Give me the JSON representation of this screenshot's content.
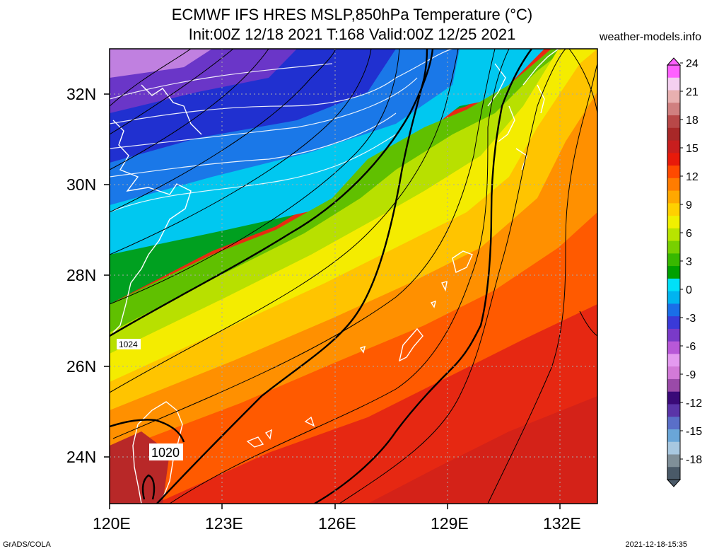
{
  "header": {
    "title_line1": "ECMWF IFS HRES MSLP,850hPa Temperature (°C)",
    "title_line2": "Init:00Z 12/18 2021 T:168 Valid:00Z 12/25 2021",
    "site": "weather-models.info"
  },
  "axes": {
    "lon_labels": [
      "120E",
      "123E",
      "126E",
      "129E",
      "132E"
    ],
    "lat_labels": [
      "32N",
      "30N",
      "28N",
      "26N",
      "24N"
    ]
  },
  "colorbar": {
    "labels": [
      "24",
      "21",
      "18",
      "15",
      "12",
      "9",
      "6",
      "3",
      "0",
      "-3",
      "-6",
      "-9",
      "-12",
      "-15",
      "-18"
    ],
    "colors": [
      "#4a5a68",
      "#7f8f98",
      "#a8c8e0",
      "#6aa6d8",
      "#5a6fc8",
      "#5a34a8",
      "#3a0a78",
      "#9a4aa8",
      "#d27ad8",
      "#e49af0",
      "#b858d8",
      "#7a3ac8",
      "#3a3ad8",
      "#1a6ee8",
      "#00b4f0",
      "#00e0f8",
      "#00a000",
      "#38b800",
      "#78d000",
      "#b8e400",
      "#f0f000",
      "#ffd000",
      "#ffa800",
      "#ff7c00",
      "#ff4a00",
      "#e81a0a",
      "#c81e1e",
      "#a82828",
      "#b84848",
      "#d08080",
      "#e8b0b0",
      "#f4d0f0",
      "#ff60ff"
    ]
  },
  "isobars": {
    "label_1024": "1024",
    "label_1020": "1020"
  },
  "footer": {
    "left": "GrADS/COLA",
    "right": "2021-12-18-15:35"
  }
}
